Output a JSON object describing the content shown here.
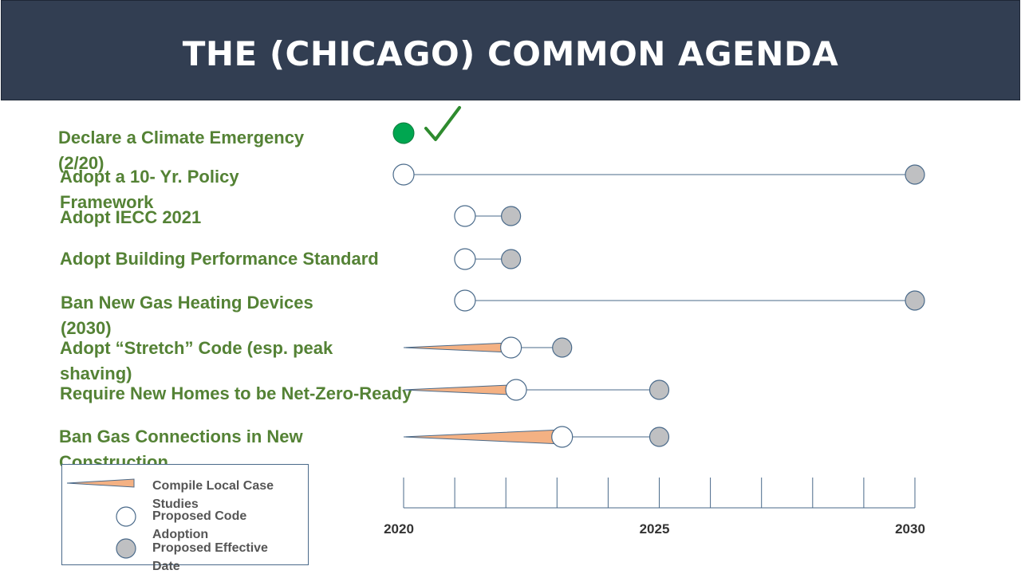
{
  "title": "THE (CHICAGO) COMMON AGENDA",
  "colors": {
    "title_bar": "#323e52",
    "label_green": "#548235",
    "done_dot": "#00a650",
    "checkmark": "#2e8b2e",
    "open_circle": "#ffffff",
    "effective_circle": "#bfc0c2",
    "case_study_wedge": "#f4b183",
    "connector_line": "#4a6a8a"
  },
  "rows": [
    {
      "label_lines": [
        "Declare a Climate Emergency",
        "(2/20)"
      ],
      "status": "completed",
      "status_icon": "checkmark-icon"
    },
    {
      "label_lines": [
        "Adopt a 10- Yr. Policy",
        "Framework"
      ],
      "case_start": null,
      "proposed": 2020.0,
      "effective": 2030.0
    },
    {
      "label_lines": [
        "Adopt IECC  2021"
      ],
      "case_start": null,
      "proposed": 2021.2,
      "effective": 2022.1
    },
    {
      "label_lines": [
        "Adopt Building Performance Standard"
      ],
      "case_start": null,
      "proposed": 2021.2,
      "effective": 2022.1
    },
    {
      "label_lines": [
        "Ban New Gas Heating Devices",
        "(2030)"
      ],
      "case_start": null,
      "proposed": 2021.2,
      "effective": 2030.0
    },
    {
      "label_lines": [
        "Adopt “Stretch” Code (esp. peak",
        "shaving)"
      ],
      "case_start": 2020.0,
      "proposed": 2022.1,
      "effective": 2023.1
    },
    {
      "label_lines": [
        "Require New Homes to be Net-Zero-Ready"
      ],
      "case_start": 2020.0,
      "proposed": 2022.2,
      "effective": 2025.0
    },
    {
      "label_lines": [
        "Ban Gas Connections in New",
        "Construction"
      ],
      "case_start": 2020.0,
      "proposed": 2023.1,
      "effective": 2025.0
    }
  ],
  "axis": {
    "start": 2020,
    "end": 2030,
    "labels": [
      "2020",
      "2025",
      "2030"
    ]
  },
  "legend": {
    "items": [
      {
        "label_lines": [
          "Compile Local Case",
          "Studies"
        ],
        "symbol": "wedge"
      },
      {
        "label_lines": [
          "Proposed Code",
          "Adoption"
        ],
        "symbol": "open-circle"
      },
      {
        "label_lines": [
          "Proposed Effective",
          "Date"
        ],
        "symbol": "gray-circle"
      }
    ]
  }
}
